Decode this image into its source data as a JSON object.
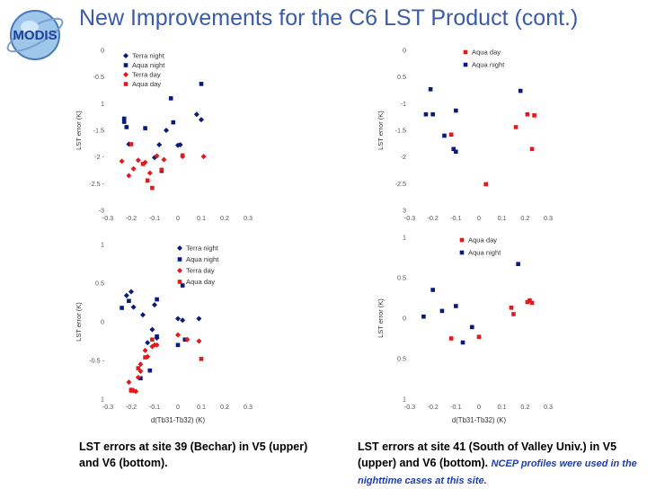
{
  "slide": {
    "title": "New Improvements for the C6 LST Product (cont.)",
    "logo_text": "MODIS",
    "caption_left": "LST errors at site 39 (Bechar) in V5 (upper) and V6 (bottom).",
    "caption_right_main": "LST errors at site 41 (South of Valley Univ.) in V5 (upper) and V6 (bottom).",
    "caption_right_note": "NCEP profiles were used in the nighttime cases at this site."
  },
  "colors": {
    "red": "#e31a1c",
    "navy": "#0a1a7a",
    "title": "#3a5ca8"
  },
  "chart_data": [
    {
      "id": "site39-v5",
      "type": "scatter",
      "xlabel": "",
      "ylabel": "LST error (K)",
      "xlim": [
        -0.3,
        0.3
      ],
      "ylim": [
        -3,
        0
      ],
      "xticks": [
        "-0.3",
        "-0.2",
        "-0.1",
        "0",
        "0.1",
        "0.2",
        "0.3"
      ],
      "yticks": [
        {
          "v": 0,
          "t": "0"
        },
        {
          "v": -0.5,
          "t": "-0.5"
        },
        {
          "v": -1,
          "t": "1"
        },
        {
          "v": -1.5,
          "t": "-1.5"
        },
        {
          "v": -2,
          "t": "-2 -"
        },
        {
          "v": -2.5,
          "t": "-2.5 -"
        },
        {
          "v": -3,
          "t": "-3"
        }
      ],
      "legend": "top-right",
      "series": [
        {
          "name": "Terra night",
          "marker": "diamond",
          "color": "#0a1a7a",
          "points": [
            [
              -0.21,
              -1.76
            ],
            [
              -0.1,
              -2.01
            ],
            [
              -0.08,
              -1.77
            ],
            [
              -0.05,
              -1.5
            ],
            [
              0.0,
              -1.78
            ],
            [
              0.01,
              -1.77
            ],
            [
              0.08,
              -1.2
            ],
            [
              0.1,
              -1.3
            ]
          ]
        },
        {
          "name": "Aqua night",
          "marker": "square",
          "color": "#0a1a7a",
          "points": [
            [
              -0.23,
              -1.28
            ],
            [
              -0.23,
              -1.34
            ],
            [
              -0.22,
              -1.44
            ],
            [
              -0.14,
              -1.46
            ],
            [
              -0.07,
              -2.26
            ],
            [
              -0.02,
              -1.35
            ],
            [
              -0.03,
              -0.9
            ],
            [
              0.1,
              -0.63
            ]
          ]
        },
        {
          "name": "Terra day",
          "marker": "diamond",
          "color": "#e31a1c",
          "points": [
            [
              -0.24,
              -2.08
            ],
            [
              -0.21,
              -2.35
            ],
            [
              -0.19,
              -2.22
            ],
            [
              -0.17,
              -2.06
            ],
            [
              -0.14,
              -2.1
            ],
            [
              -0.12,
              -2.3
            ],
            [
              -0.09,
              -1.98
            ],
            [
              -0.06,
              -2.05
            ],
            [
              0.02,
              -1.99
            ],
            [
              0.11,
              -1.99
            ]
          ]
        },
        {
          "name": "Aqua day",
          "marker": "square",
          "color": "#e31a1c",
          "points": [
            [
              -0.2,
              -1.76
            ],
            [
              -0.15,
              -2.13
            ],
            [
              -0.13,
              -2.44
            ],
            [
              -0.11,
              -2.58
            ],
            [
              -0.07,
              -2.24
            ],
            [
              0.02,
              -1.97
            ]
          ]
        }
      ]
    },
    {
      "id": "site41-v5",
      "type": "scatter",
      "xlabel": "",
      "ylabel": "LST error (K)",
      "xlim": [
        -0.3,
        0.3
      ],
      "ylim": [
        -3,
        0
      ],
      "xticks": [
        "-0.3",
        "-0.2",
        "-0.1",
        "0",
        "0.1",
        "0.2",
        "0.3"
      ],
      "yticks": [
        {
          "v": 0,
          "t": "0"
        },
        {
          "v": -0.5,
          "t": "0.5"
        },
        {
          "v": -1,
          "t": "-1"
        },
        {
          "v": -1.5,
          "t": "-1.5"
        },
        {
          "v": -2,
          "t": "-2"
        },
        {
          "v": -2.5,
          "t": "-2.5"
        },
        {
          "v": -3,
          "t": "3"
        }
      ],
      "legend": "top-right",
      "series": [
        {
          "name": "Aqua day",
          "marker": "square",
          "color": "#e31a1c",
          "points": [
            [
              -0.12,
              -1.58
            ],
            [
              0.03,
              -2.51
            ],
            [
              0.16,
              -1.44
            ],
            [
              0.21,
              -1.2
            ],
            [
              0.24,
              -1.22
            ],
            [
              0.23,
              -1.85
            ]
          ]
        },
        {
          "name": "Aqua night",
          "marker": "square",
          "color": "#0a1a7a",
          "points": [
            [
              -0.21,
              -0.73
            ],
            [
              -0.23,
              -1.2
            ],
            [
              -0.2,
              -1.2
            ],
            [
              -0.15,
              -1.6
            ],
            [
              -0.11,
              -1.85
            ],
            [
              -0.1,
              -1.9
            ],
            [
              -0.1,
              -1.13
            ],
            [
              0.18,
              -0.76
            ]
          ]
        }
      ]
    },
    {
      "id": "site39-v6",
      "type": "scatter",
      "xlabel": "d(Tb31-Tb32) (K)",
      "ylabel": "LST error (K)",
      "xlim": [
        -0.3,
        0.3
      ],
      "ylim": [
        -1,
        1
      ],
      "xticks": [
        "-0.3",
        "-0.2",
        "-0.1",
        "0",
        "0.1",
        "0.2",
        "0.3"
      ],
      "yticks": [
        {
          "v": 1,
          "t": "1"
        },
        {
          "v": 0.5,
          "t": "0.5"
        },
        {
          "v": 0,
          "t": "0"
        },
        {
          "v": -0.5,
          "t": "-0.5 -"
        },
        {
          "v": -1,
          "t": "1"
        }
      ],
      "legend": "top-right",
      "series": [
        {
          "name": "Terra night",
          "marker": "diamond",
          "color": "#0a1a7a",
          "points": [
            [
              -0.22,
              0.34
            ],
            [
              -0.2,
              0.39
            ],
            [
              -0.19,
              0.19
            ],
            [
              -0.15,
              0.09
            ],
            [
              -0.13,
              -0.27
            ],
            [
              -0.11,
              -0.1
            ],
            [
              -0.1,
              0.22
            ],
            [
              -0.09,
              -0.21
            ],
            [
              0.0,
              0.04
            ],
            [
              0.02,
              0.02
            ],
            [
              0.09,
              0.04
            ]
          ]
        },
        {
          "name": "Aqua night",
          "marker": "square",
          "color": "#0a1a7a",
          "points": [
            [
              -0.24,
              0.18
            ],
            [
              -0.21,
              0.27
            ],
            [
              -0.16,
              -0.73
            ],
            [
              -0.12,
              -0.63
            ],
            [
              -0.09,
              0.29
            ],
            [
              -0.09,
              -0.19
            ],
            [
              0.0,
              -0.3
            ],
            [
              0.02,
              0.47
            ],
            [
              0.03,
              -0.23
            ]
          ]
        },
        {
          "name": "Terra day",
          "marker": "diamond",
          "color": "#e31a1c",
          "points": [
            [
              -0.21,
              -0.78
            ],
            [
              -0.19,
              -0.89
            ],
            [
              -0.18,
              -0.9
            ],
            [
              -0.17,
              -0.72
            ],
            [
              -0.16,
              -0.55
            ],
            [
              -0.16,
              -0.64
            ],
            [
              -0.14,
              -0.37
            ],
            [
              -0.13,
              -0.45
            ],
            [
              -0.11,
              -0.32
            ],
            [
              -0.1,
              -0.3
            ],
            [
              -0.09,
              -0.3
            ],
            [
              0.0,
              -0.17
            ],
            [
              0.04,
              -0.23
            ],
            [
              0.09,
              -0.25
            ]
          ]
        },
        {
          "name": "Aqua day",
          "marker": "square",
          "color": "#e31a1c",
          "points": [
            [
              -0.2,
              -0.88
            ],
            [
              -0.2,
              -0.89
            ],
            [
              -0.17,
              -0.6
            ],
            [
              -0.14,
              -0.46
            ],
            [
              -0.11,
              -0.23
            ],
            [
              0.1,
              -0.48
            ]
          ]
        }
      ]
    },
    {
      "id": "site41-v6",
      "type": "scatter",
      "xlabel": "d(Tb31-Tb32) (K)",
      "ylabel": "LST error (K)",
      "xlim": [
        -0.3,
        0.3
      ],
      "ylim": [
        -1,
        1
      ],
      "xticks": [
        "-0.3",
        "-0.2",
        "-0.1",
        "0",
        "0.1",
        "0.2",
        "0.3"
      ],
      "yticks": [
        {
          "v": 1,
          "t": "1"
        },
        {
          "v": 0.5,
          "t": "0.5"
        },
        {
          "v": 0,
          "t": "0"
        },
        {
          "v": -0.5,
          "t": "0.5"
        },
        {
          "v": -1,
          "t": "1"
        }
      ],
      "legend": "top-right",
      "series": [
        {
          "name": "Aqua day",
          "marker": "square",
          "color": "#e31a1c",
          "points": [
            [
              -0.12,
              -0.25
            ],
            [
              0.0,
              -0.23
            ],
            [
              0.14,
              0.13
            ],
            [
              0.15,
              0.05
            ],
            [
              0.21,
              0.2
            ],
            [
              0.22,
              0.22
            ],
            [
              0.23,
              0.19
            ]
          ]
        },
        {
          "name": "Aqua night",
          "marker": "square",
          "color": "#0a1a7a",
          "points": [
            [
              -0.24,
              0.02
            ],
            [
              -0.2,
              0.35
            ],
            [
              -0.16,
              0.09
            ],
            [
              -0.1,
              0.15
            ],
            [
              -0.07,
              -0.3
            ],
            [
              -0.03,
              -0.11
            ],
            [
              0.17,
              0.67
            ]
          ]
        }
      ]
    }
  ]
}
